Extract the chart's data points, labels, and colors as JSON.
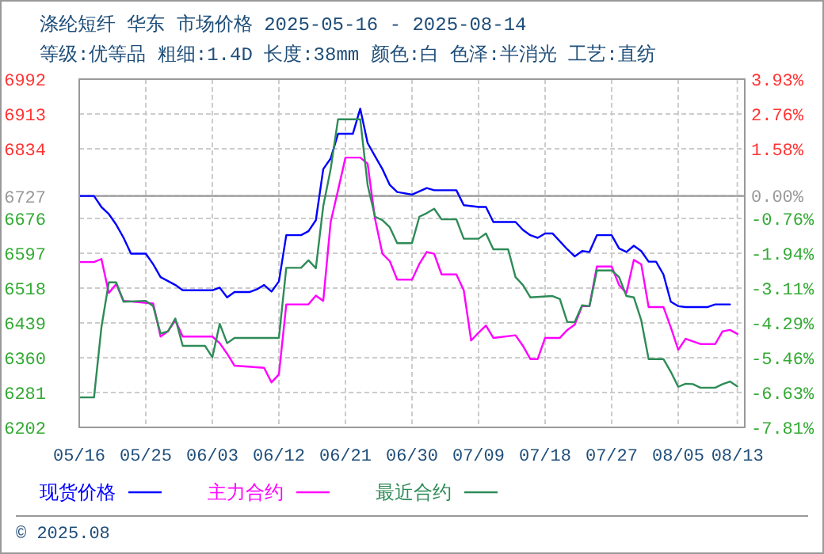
{
  "chart_data": {
    "type": "line",
    "title": "涤纶短纤 华东 市场价格 2025-05-16 - 2025-08-14",
    "subtitle": "等级:优等品 粗细:1.4D 长度:38mm 颜色:白 色泽:半消光 工艺:直纺",
    "xlim": [
      "2025-05-16",
      "2025-08-14"
    ],
    "xticks": [
      {
        "value": "2025-05-16",
        "label": "05/16"
      },
      {
        "value": "2025-05-25",
        "label": "05/25"
      },
      {
        "value": "2025-06-03",
        "label": "06/03"
      },
      {
        "value": "2025-06-12",
        "label": "06/12"
      },
      {
        "value": "2025-06-21",
        "label": "06/21"
      },
      {
        "value": "2025-06-30",
        "label": "06/30"
      },
      {
        "value": "2025-07-09",
        "label": "07/09"
      },
      {
        "value": "2025-07-18",
        "label": "07/18"
      },
      {
        "value": "2025-07-27",
        "label": "07/27"
      },
      {
        "value": "2025-08-05",
        "label": "08/05"
      },
      {
        "value": "2025-08-13",
        "label": "08/13"
      }
    ],
    "ylim": [
      6202,
      6992
    ],
    "yticks": [
      6202,
      6281,
      6360,
      6439,
      6518,
      6597,
      6676,
      6727,
      6834,
      6913,
      6992
    ],
    "y2lim": [
      -7.81,
      3.93
    ],
    "y2ticks": [
      {
        "value": -7.81,
        "label": "-7.81%"
      },
      {
        "value": -6.63,
        "label": "-6.63%"
      },
      {
        "value": -5.46,
        "label": "-5.46%"
      },
      {
        "value": -4.29,
        "label": "-4.29%"
      },
      {
        "value": -3.11,
        "label": "-3.11%"
      },
      {
        "value": -1.94,
        "label": "-1.94%"
      },
      {
        "value": -0.76,
        "label": "-0.76%"
      },
      {
        "value": 0,
        "label": "0.00%"
      },
      {
        "value": 1.58,
        "label": "1.58%"
      },
      {
        "value": 2.76,
        "label": "2.76%"
      },
      {
        "value": 3.93,
        "label": "3.93%"
      }
    ],
    "ref_lines": [
      {
        "axis": "y",
        "value": 6727,
        "color": "#999999"
      }
    ],
    "grid": true,
    "legend": "bottom",
    "annotations": [
      "© 2025.08"
    ],
    "series": [
      {
        "name": "现货价格",
        "color": "#0000ff",
        "x": [
          "2025-05-16",
          "2025-05-18",
          "2025-05-19",
          "2025-05-20",
          "2025-05-21",
          "2025-05-22",
          "2025-05-23",
          "2025-05-25",
          "2025-05-26",
          "2025-05-27",
          "2025-05-28",
          "2025-05-29",
          "2025-05-30",
          "2025-06-03",
          "2025-06-04",
          "2025-06-05",
          "2025-06-06",
          "2025-06-08",
          "2025-06-09",
          "2025-06-10",
          "2025-06-11",
          "2025-06-12",
          "2025-06-13",
          "2025-06-15",
          "2025-06-16",
          "2025-06-17",
          "2025-06-18",
          "2025-06-19",
          "2025-06-20",
          "2025-06-22",
          "2025-06-23",
          "2025-06-24",
          "2025-06-25",
          "2025-06-26",
          "2025-06-27",
          "2025-06-28",
          "2025-06-30",
          "2025-07-02",
          "2025-07-03",
          "2025-07-04",
          "2025-07-06",
          "2025-07-07",
          "2025-07-09",
          "2025-07-10",
          "2025-07-11",
          "2025-07-14",
          "2025-07-15",
          "2025-07-16",
          "2025-07-17",
          "2025-07-18",
          "2025-07-19",
          "2025-07-21",
          "2025-07-22",
          "2025-07-23",
          "2025-07-24",
          "2025-07-25",
          "2025-07-27",
          "2025-07-28",
          "2025-07-29",
          "2025-07-30",
          "2025-07-31",
          "2025-08-01",
          "2025-08-02",
          "2025-08-03",
          "2025-08-04",
          "2025-08-05",
          "2025-08-06",
          "2025-08-09",
          "2025-08-10",
          "2025-08-12"
        ],
        "values": [
          6727,
          6727,
          6702,
          6686,
          6662,
          6632,
          6596,
          6596,
          6572,
          6543,
          6534,
          6525,
          6513,
          6513,
          6519,
          6497,
          6509,
          6509,
          6515,
          6525,
          6510,
          6533,
          6638,
          6638,
          6647,
          6672,
          6788,
          6812,
          6868,
          6868,
          6925,
          6847,
          6817,
          6788,
          6752,
          6736,
          6730,
          6745,
          6740,
          6740,
          6740,
          6706,
          6702,
          6702,
          6668,
          6668,
          6650,
          6638,
          6632,
          6642,
          6642,
          6606,
          6590,
          6602,
          6600,
          6638,
          6638,
          6608,
          6600,
          6614,
          6602,
          6578,
          6578,
          6549,
          6487,
          6477,
          6475,
          6475,
          6481,
          6481
        ]
      },
      {
        "name": "主力合约",
        "color": "#ff00ff",
        "x": [
          "2025-05-16",
          "2025-05-18",
          "2025-05-19",
          "2025-05-20",
          "2025-05-21",
          "2025-05-22",
          "2025-05-26",
          "2025-05-27",
          "2025-05-28",
          "2025-05-29",
          "2025-05-30",
          "2025-06-03",
          "2025-06-04",
          "2025-06-05",
          "2025-06-06",
          "2025-06-10",
          "2025-06-11",
          "2025-06-12",
          "2025-06-13",
          "2025-06-16",
          "2025-06-17",
          "2025-06-18",
          "2025-06-19",
          "2025-06-20",
          "2025-06-21",
          "2025-06-23",
          "2025-06-24",
          "2025-06-25",
          "2025-06-26",
          "2025-06-27",
          "2025-06-28",
          "2025-06-30",
          "2025-07-01",
          "2025-07-02",
          "2025-07-03",
          "2025-07-04",
          "2025-07-06",
          "2025-07-07",
          "2025-07-08",
          "2025-07-09",
          "2025-07-10",
          "2025-07-11",
          "2025-07-14",
          "2025-07-15",
          "2025-07-16",
          "2025-07-17",
          "2025-07-18",
          "2025-07-20",
          "2025-07-21",
          "2025-07-22",
          "2025-07-23",
          "2025-07-24",
          "2025-07-25",
          "2025-07-27",
          "2025-07-28",
          "2025-07-29",
          "2025-07-30",
          "2025-07-31",
          "2025-08-01",
          "2025-08-03",
          "2025-08-04",
          "2025-08-05",
          "2025-08-06",
          "2025-08-08",
          "2025-08-10",
          "2025-08-11",
          "2025-08-12",
          "2025-08-13"
        ],
        "values": [
          6577,
          6577,
          6584,
          6507,
          6527,
          6489,
          6483,
          6408,
          6420,
          6445,
          6408,
          6408,
          6393,
          6369,
          6342,
          6337,
          6304,
          6322,
          6481,
          6481,
          6501,
          6489,
          6668,
          6740,
          6814,
          6814,
          6800,
          6675,
          6596,
          6579,
          6537,
          6537,
          6573,
          6600,
          6596,
          6549,
          6549,
          6513,
          6399,
          6417,
          6433,
          6405,
          6411,
          6387,
          6357,
          6357,
          6405,
          6405,
          6423,
          6435,
          6477,
          6477,
          6567,
          6567,
          6525,
          6507,
          6582,
          6572,
          6475,
          6475,
          6429,
          6378,
          6403,
          6391,
          6391,
          6420,
          6423,
          6414
        ]
      },
      {
        "name": "最近合约",
        "color": "#2e8b57",
        "x": [
          "2025-05-16",
          "2025-05-18",
          "2025-05-19",
          "2025-05-20",
          "2025-05-21",
          "2025-05-22",
          "2025-05-25",
          "2025-05-26",
          "2025-05-27",
          "2025-05-28",
          "2025-05-29",
          "2025-05-30",
          "2025-06-02",
          "2025-06-03",
          "2025-06-04",
          "2025-06-05",
          "2025-06-06",
          "2025-06-12",
          "2025-06-13",
          "2025-06-15",
          "2025-06-16",
          "2025-06-17",
          "2025-06-18",
          "2025-06-19",
          "2025-06-20",
          "2025-06-23",
          "2025-06-24",
          "2025-06-25",
          "2025-06-26",
          "2025-06-27",
          "2025-06-28",
          "2025-06-30",
          "2025-07-01",
          "2025-07-02",
          "2025-07-03",
          "2025-07-04",
          "2025-07-06",
          "2025-07-07",
          "2025-07-09",
          "2025-07-10",
          "2025-07-11",
          "2025-07-13",
          "2025-07-14",
          "2025-07-15",
          "2025-07-16",
          "2025-07-19",
          "2025-07-20",
          "2025-07-21",
          "2025-07-22",
          "2025-07-23",
          "2025-07-24",
          "2025-07-25",
          "2025-07-27",
          "2025-07-28",
          "2025-07-29",
          "2025-07-30",
          "2025-07-31",
          "2025-08-01",
          "2025-08-03",
          "2025-08-04",
          "2025-08-05",
          "2025-08-06",
          "2025-08-07",
          "2025-08-08",
          "2025-08-10",
          "2025-08-11",
          "2025-08-12",
          "2025-08-13"
        ],
        "values": [
          6270,
          6270,
          6429,
          6531,
          6531,
          6487,
          6489,
          6477,
          6415,
          6420,
          6449,
          6387,
          6387,
          6361,
          6437,
          6393,
          6405,
          6405,
          6564,
          6564,
          6581,
          6563,
          6704,
          6788,
          6901,
          6901,
          6752,
          6680,
          6672,
          6656,
          6620,
          6620,
          6680,
          6688,
          6698,
          6674,
          6674,
          6630,
          6630,
          6642,
          6606,
          6606,
          6543,
          6525,
          6497,
          6500,
          6493,
          6441,
          6441,
          6479,
          6477,
          6558,
          6558,
          6543,
          6500,
          6497,
          6445,
          6357,
          6357,
          6328,
          6294,
          6301,
          6300,
          6292,
          6292,
          6300,
          6306,
          6295
        ]
      }
    ]
  }
}
